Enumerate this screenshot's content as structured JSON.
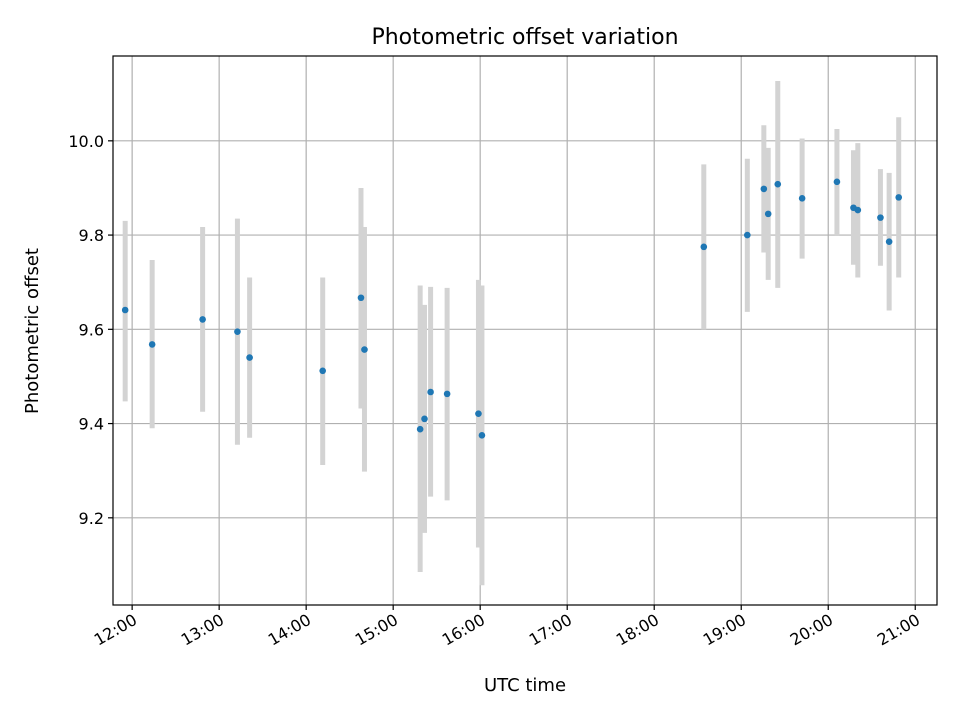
{
  "chart_data": {
    "type": "scatter",
    "title": "Photometric offset variation",
    "xlabel": "UTC time",
    "ylabel": "Photometric offset",
    "x_unit": "hour",
    "xlim": [
      11.78,
      21.25
    ],
    "ylim": [
      9.015,
      10.18
    ],
    "x_ticks": [
      12,
      13,
      14,
      15,
      16,
      17,
      18,
      19,
      20,
      21
    ],
    "x_tick_labels": [
      "12:00",
      "13:00",
      "14:00",
      "15:00",
      "16:00",
      "17:00",
      "18:00",
      "19:00",
      "20:00",
      "21:00"
    ],
    "y_ticks": [
      9.2,
      9.4,
      9.6,
      9.8,
      10.0
    ],
    "y_tick_labels": [
      "9.2",
      "9.4",
      "9.6",
      "9.8",
      "10.0"
    ],
    "grid": true,
    "point_color": "#1f77b4",
    "errorbar_color": "#d3d3d3",
    "points": [
      {
        "x": 11.92,
        "y": 9.641,
        "lo": 9.447,
        "hi": 9.83
      },
      {
        "x": 12.23,
        "y": 9.568,
        "lo": 9.39,
        "hi": 9.747
      },
      {
        "x": 12.81,
        "y": 9.621,
        "lo": 9.425,
        "hi": 9.817
      },
      {
        "x": 13.21,
        "y": 9.595,
        "lo": 9.355,
        "hi": 9.835
      },
      {
        "x": 13.35,
        "y": 9.54,
        "lo": 9.37,
        "hi": 9.71
      },
      {
        "x": 14.19,
        "y": 9.512,
        "lo": 9.312,
        "hi": 9.71
      },
      {
        "x": 14.63,
        "y": 9.667,
        "lo": 9.432,
        "hi": 9.9
      },
      {
        "x": 14.67,
        "y": 9.557,
        "lo": 9.298,
        "hi": 9.817
      },
      {
        "x": 15.31,
        "y": 9.388,
        "lo": 9.085,
        "hi": 9.693
      },
      {
        "x": 15.36,
        "y": 9.41,
        "lo": 9.168,
        "hi": 9.652
      },
      {
        "x": 15.43,
        "y": 9.467,
        "lo": 9.245,
        "hi": 9.69
      },
      {
        "x": 15.62,
        "y": 9.463,
        "lo": 9.237,
        "hi": 9.688
      },
      {
        "x": 15.98,
        "y": 9.421,
        "lo": 9.137,
        "hi": 9.705
      },
      {
        "x": 16.02,
        "y": 9.375,
        "lo": 9.057,
        "hi": 9.693
      },
      {
        "x": 18.57,
        "y": 9.775,
        "lo": 9.6,
        "hi": 9.95
      },
      {
        "x": 19.07,
        "y": 9.8,
        "lo": 9.637,
        "hi": 9.962
      },
      {
        "x": 19.26,
        "y": 9.898,
        "lo": 9.763,
        "hi": 10.033
      },
      {
        "x": 19.31,
        "y": 9.845,
        "lo": 9.705,
        "hi": 9.985
      },
      {
        "x": 19.42,
        "y": 9.908,
        "lo": 9.688,
        "hi": 10.127
      },
      {
        "x": 19.7,
        "y": 9.878,
        "lo": 9.75,
        "hi": 10.005
      },
      {
        "x": 20.1,
        "y": 9.913,
        "lo": 9.8,
        "hi": 10.025
      },
      {
        "x": 20.29,
        "y": 9.858,
        "lo": 9.737,
        "hi": 9.98
      },
      {
        "x": 20.34,
        "y": 9.853,
        "lo": 9.71,
        "hi": 9.995
      },
      {
        "x": 20.6,
        "y": 9.837,
        "lo": 9.735,
        "hi": 9.94
      },
      {
        "x": 20.7,
        "y": 9.786,
        "lo": 9.64,
        "hi": 9.932
      },
      {
        "x": 20.81,
        "y": 9.88,
        "lo": 9.71,
        "hi": 10.05
      }
    ]
  }
}
